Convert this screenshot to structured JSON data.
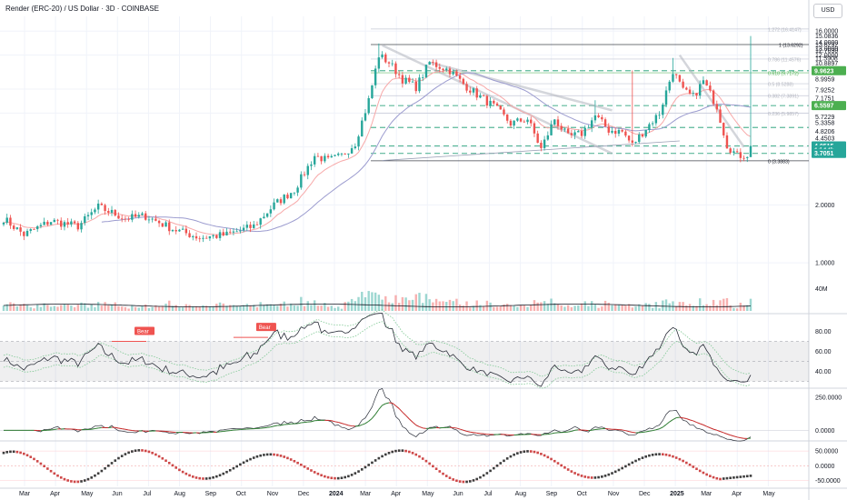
{
  "header": {
    "title": "Render (ERC-20) / US Dollar · 3D · COINBASE",
    "currency_button": "USD"
  },
  "colors": {
    "bull": "#26a69a",
    "bear": "#ef5350",
    "ema": "#f7a8a8",
    "sma": "#9c9ccf",
    "fib_key": "#4caf50",
    "fib_dash": "#5bb89a",
    "text": "#131722",
    "axis_text": "#131722",
    "grid": "#f0f3fa"
  },
  "chart_data": [
    {
      "type": "candlestick",
      "name": "price",
      "x_tick_labels": [
        "Mar",
        "Apr",
        "May",
        "Jun",
        "Jul",
        "Aug",
        "Sep",
        "Oct",
        "Nov",
        "Dec",
        "2024",
        "Mar",
        "Apr",
        "May",
        "Jun",
        "Jul",
        "Aug",
        "Sep",
        "Oct",
        "Nov",
        "Dec",
        "2025",
        "Mar",
        "Apr",
        "May"
      ],
      "y_scale": "log",
      "ylim": [
        0.85,
        17.5
      ],
      "y_tick_labels": [
        "16.0000",
        "15.0836",
        "14.0000",
        "13.6292",
        "13.0000",
        "12.7030",
        "12.0000",
        "11.5908",
        "10.8897",
        "9.9623",
        "8.9959",
        "7.9252",
        "7.1751",
        "6.5597",
        "5.7229",
        "5.3358",
        "4.8206",
        "4.4503",
        "4.0515",
        "3.7051",
        "2.0000",
        "1.0000"
      ],
      "fib_levels": [
        {
          "label": "1.272 (16.4147)",
          "value": 16.4147
        },
        {
          "label": "1 (13.6292)",
          "value": 13.6292
        },
        {
          "label": "0.786 (11.4576)",
          "value": 11.4576
        },
        {
          "label": "0.618 (9.7172)",
          "value": 9.7172
        },
        {
          "label": "0.5 (8.5288)",
          "value": 8.5288
        },
        {
          "label": "0.382 (7.3891)",
          "value": 7.3891
        },
        {
          "label": "0.236 (5.9857)",
          "value": 5.9857
        },
        {
          "label": "0 (3.3883)",
          "value": 3.3883
        }
      ],
      "price_badges": [
        {
          "label": "9.9623",
          "value": 9.9623,
          "color": "#4caf50"
        },
        {
          "label": "6.5597",
          "value": 6.5597,
          "color": "#4caf50"
        },
        {
          "label": "4.0515",
          "value": 4.0515,
          "color": "#26a69a"
        },
        {
          "label": "1d 14h",
          "value": 3.86,
          "color": "#26a69a"
        },
        {
          "label": "3.7051",
          "value": 3.7051,
          "color": "#26a69a"
        }
      ],
      "anchors": [
        [
          0,
          1.7
        ],
        [
          6,
          1.4
        ],
        [
          14,
          1.65
        ],
        [
          22,
          1.55
        ],
        [
          28,
          1.95
        ],
        [
          36,
          1.7
        ],
        [
          42,
          1.75
        ],
        [
          50,
          1.5
        ],
        [
          58,
          1.35
        ],
        [
          66,
          1.4
        ],
        [
          74,
          1.55
        ],
        [
          80,
          2.0
        ],
        [
          86,
          2.4
        ],
        [
          92,
          3.6
        ],
        [
          96,
          3.4
        ],
        [
          100,
          3.6
        ],
        [
          104,
          4.2
        ],
        [
          108,
          7.0
        ],
        [
          111,
          12.0
        ],
        [
          114,
          11.0
        ],
        [
          118,
          9.0
        ],
        [
          122,
          8.2
        ],
        [
          126,
          11.0
        ],
        [
          132,
          10.0
        ],
        [
          136,
          8.5
        ],
        [
          140,
          7.5
        ],
        [
          145,
          6.5
        ],
        [
          150,
          5.3
        ],
        [
          155,
          5.6
        ],
        [
          159,
          3.9
        ],
        [
          163,
          5.6
        ],
        [
          167,
          4.5
        ],
        [
          171,
          4.7
        ],
        [
          175,
          5.8
        ],
        [
          179,
          4.9
        ],
        [
          183,
          4.8
        ],
        [
          186,
          4.1
        ],
        [
          190,
          5.0
        ],
        [
          194,
          6.0
        ],
        [
          198,
          10.0
        ],
        [
          201,
          7.8
        ],
        [
          204,
          7.3
        ],
        [
          207,
          8.8
        ],
        [
          211,
          6.5
        ],
        [
          214,
          4.1
        ],
        [
          217,
          3.6
        ],
        [
          220,
          3.65
        ],
        [
          221,
          4.05
        ]
      ],
      "current_price": 4.0515
    },
    {
      "type": "bar",
      "name": "volume",
      "y_tick_labels": [
        "40M"
      ]
    },
    {
      "type": "line",
      "name": "rsi",
      "ylim": [
        25,
        95
      ],
      "y_tick_labels": [
        "80.00",
        "60.00",
        "40.00"
      ],
      "bands": [
        70,
        50,
        30
      ],
      "annotations": [
        "Bear",
        "Bear"
      ]
    },
    {
      "type": "line",
      "name": "momentum",
      "ylim": [
        -60,
        300
      ],
      "y_tick_labels": [
        "250.0000",
        "0.0000"
      ]
    },
    {
      "type": "line",
      "name": "oscillator",
      "ylim": [
        -70,
        75
      ],
      "y_tick_labels": [
        "50.0000",
        "0.0000",
        "-50.0000"
      ]
    }
  ]
}
